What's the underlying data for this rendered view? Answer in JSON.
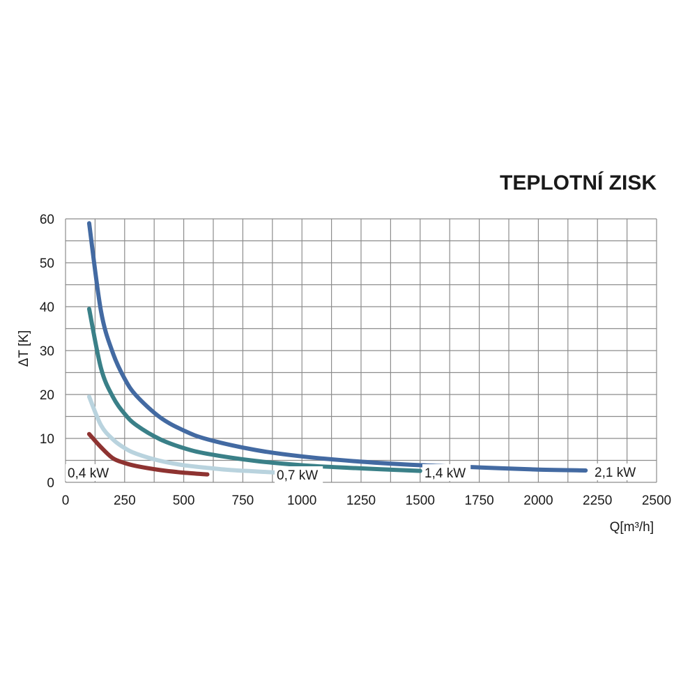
{
  "chart_data": {
    "type": "line",
    "title": "TEPLOTNÍ ZISK",
    "xlabel": "Q[m³/h]",
    "ylabel": "ΔT [K]",
    "xlim": [
      0,
      2500
    ],
    "ylim": [
      0,
      60
    ],
    "x_ticks": [
      "0",
      "250",
      "500",
      "750",
      "1000",
      "1250",
      "1500",
      "1750",
      "2000",
      "2250",
      "2500"
    ],
    "y_ticks": [
      "0",
      "10",
      "20",
      "30",
      "40",
      "50",
      "60"
    ],
    "grid": true,
    "series": [
      {
        "name": "0,4 kW",
        "color": "#8e3331",
        "x": [
          100,
          150,
          200,
          250,
          300,
          400,
          500,
          600
        ],
        "y": [
          11,
          8,
          5.5,
          4.4,
          3.7,
          2.8,
          2.2,
          1.8
        ]
      },
      {
        "name": "0,7 kW",
        "color": "#b9d3de",
        "x": [
          100,
          150,
          200,
          250,
          300,
          400,
          500,
          600,
          700,
          800,
          900
        ],
        "y": [
          19.5,
          13,
          9.8,
          7.8,
          6.5,
          4.9,
          3.9,
          3.3,
          2.8,
          2.5,
          2.2
        ]
      },
      {
        "name": "1,4 kW",
        "color": "#3a8088",
        "x": [
          100,
          150,
          200,
          250,
          300,
          400,
          500,
          600,
          800,
          1000,
          1200,
          1500
        ],
        "y": [
          39.5,
          26,
          19.5,
          15.6,
          13,
          9.8,
          7.8,
          6.5,
          4.9,
          3.9,
          3.3,
          2.6
        ]
      },
      {
        "name": "2,1 kW",
        "color": "#436aa2",
        "x": [
          100,
          150,
          200,
          250,
          300,
          400,
          500,
          600,
          800,
          1000,
          1250,
          1500,
          1750,
          2000,
          2200
        ],
        "y": [
          59,
          39,
          29.5,
          23.6,
          19.7,
          14.8,
          11.8,
          9.8,
          7.4,
          5.9,
          4.7,
          3.9,
          3.4,
          2.9,
          2.7
        ]
      }
    ]
  }
}
